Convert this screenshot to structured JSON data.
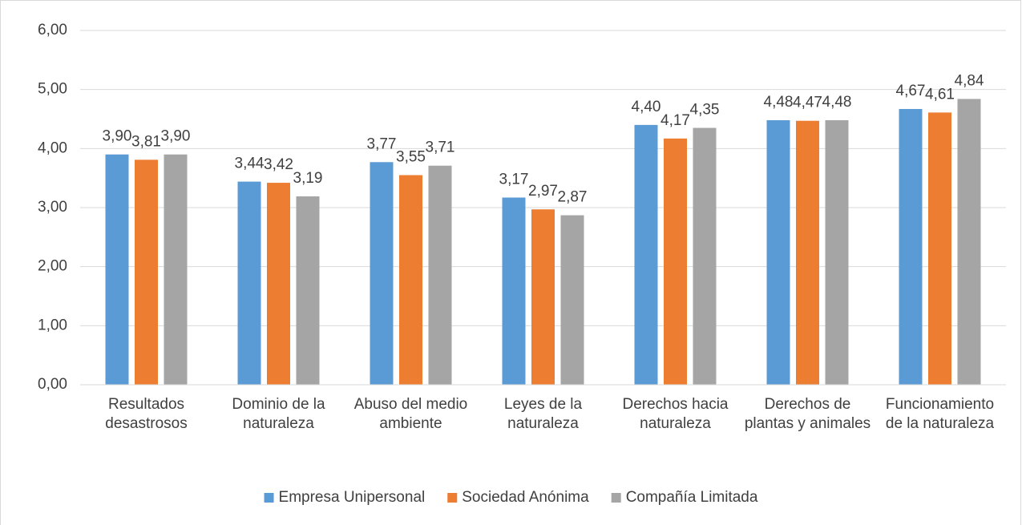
{
  "chart_data": {
    "type": "bar",
    "categories": [
      "Resultados desastrosos",
      "Dominio de la naturaleza",
      "Abuso del medio ambiente",
      "Leyes de la naturaleza",
      "Derechos hacia naturaleza",
      "Derechos de plantas y animales",
      "Funcionamiento de la naturaleza"
    ],
    "series": [
      {
        "name": "Empresa Unipersonal",
        "color": "#5b9bd5",
        "values": [
          3.9,
          3.44,
          3.77,
          3.17,
          4.4,
          4.48,
          4.67
        ],
        "value_labels": [
          "3,90",
          "3,44",
          "3,77",
          "3,17",
          "4,40",
          "4,48",
          "4,67"
        ]
      },
      {
        "name": "Sociedad Anónima",
        "color": "#ed7d31",
        "values": [
          3.81,
          3.42,
          3.55,
          2.97,
          4.17,
          4.47,
          4.61
        ],
        "value_labels": [
          "3,81",
          "3,42",
          "3,55",
          "2,97",
          "4,17",
          "4,47",
          "4,61"
        ]
      },
      {
        "name": "Compañía Limitada",
        "color": "#a5a5a5",
        "values": [
          3.9,
          3.19,
          3.71,
          2.87,
          4.35,
          4.48,
          4.84
        ],
        "value_labels": [
          "3,90",
          "3,19",
          "3,71",
          "2,87",
          "4,35",
          "4,48",
          "4,84"
        ]
      }
    ],
    "ylim": [
      0,
      6
    ],
    "yticks": [
      {
        "value": 0,
        "label": "0,00"
      },
      {
        "value": 1,
        "label": "1,00"
      },
      {
        "value": 2,
        "label": "2,00"
      },
      {
        "value": 3,
        "label": "3,00"
      },
      {
        "value": 4,
        "label": "4,00"
      },
      {
        "value": 5,
        "label": "5,00"
      },
      {
        "value": 6,
        "label": "6,00"
      }
    ],
    "grid": true,
    "legend": "bottom"
  }
}
